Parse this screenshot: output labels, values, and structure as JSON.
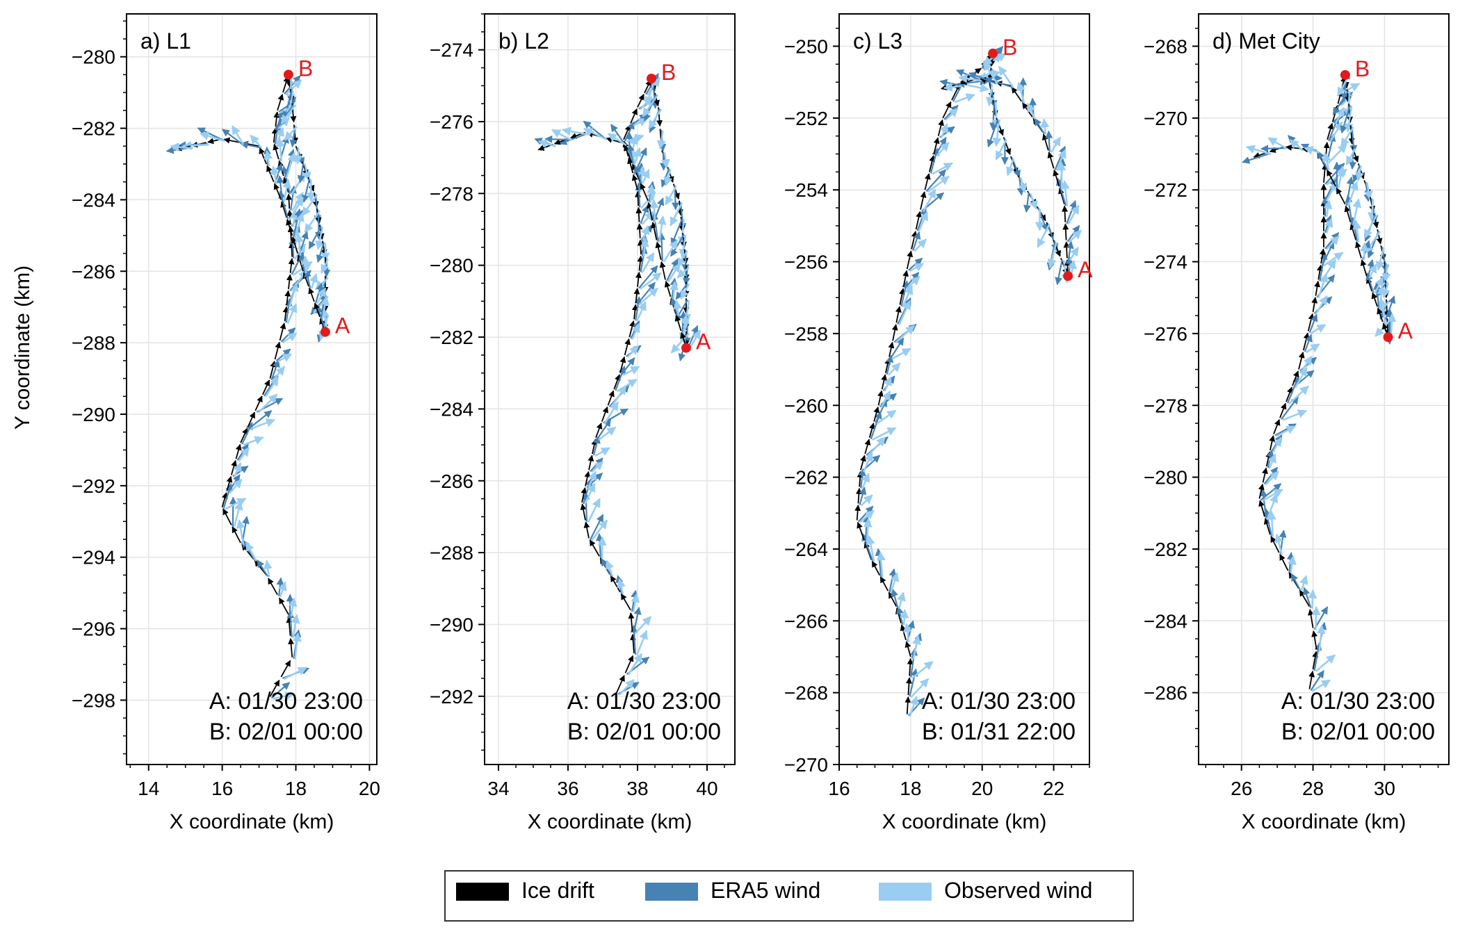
{
  "figure": {
    "ylabel": "Y coordinate (km)",
    "legend": {
      "placement": "bottom-center",
      "entries": [
        {
          "label": "Ice drift",
          "color": "#000000"
        },
        {
          "label": "ERA5 wind",
          "color": "#4682b4"
        },
        {
          "label": "Observed wind",
          "color": "#99cdf2"
        }
      ]
    },
    "marker_color": "#e31a1c"
  },
  "chart_data": [
    {
      "type": "quiver",
      "title": "a) L1",
      "xlabel": "X coordinate (km)",
      "xlim": [
        13.4,
        20.2
      ],
      "ylim": [
        -299.8,
        -278.8
      ],
      "xticks": [
        14,
        16,
        18,
        20
      ],
      "yticks": [
        -298,
        -296,
        -294,
        -292,
        -290,
        -288,
        -286,
        -284,
        -282,
        -280
      ],
      "grid": true,
      "track": [
        [
          17.3,
          -297.9
        ],
        [
          17.9,
          -296.8
        ],
        [
          17.8,
          -295.6
        ],
        [
          17.2,
          -294.5
        ],
        [
          16.5,
          -293.6
        ],
        [
          16.0,
          -292.6
        ],
        [
          16.5,
          -290.8
        ],
        [
          17.3,
          -289.0
        ],
        [
          17.7,
          -287.4
        ],
        [
          17.9,
          -285.6
        ],
        [
          17.8,
          -283.8
        ],
        [
          17.4,
          -282.4
        ],
        [
          17.5,
          -281.5
        ],
        [
          17.8,
          -280.5
        ],
        [
          17.9,
          -281.3
        ],
        [
          18.0,
          -282.5
        ],
        [
          18.5,
          -283.8
        ],
        [
          18.8,
          -285.6
        ],
        [
          18.8,
          -287.7
        ],
        [
          18.2,
          -286.0
        ],
        [
          17.6,
          -284.0
        ],
        [
          17.0,
          -282.5
        ],
        [
          16.0,
          -282.3
        ],
        [
          14.7,
          -282.6
        ]
      ],
      "point_a": {
        "label": "A",
        "x": 18.8,
        "y": -287.7
      },
      "point_b": {
        "label": "B",
        "x": 17.8,
        "y": -280.5
      },
      "annotation": {
        "a": "A: 01/30 23:00",
        "b": "B: 02/01 00:00"
      }
    },
    {
      "type": "quiver",
      "title": "b) L2",
      "xlabel": "X coordinate (km)",
      "xlim": [
        33.6,
        40.8
      ],
      "ylim": [
        -293.9,
        -273.0
      ],
      "xticks": [
        34,
        36,
        38,
        40
      ],
      "yticks": [
        -292,
        -290,
        -288,
        -286,
        -284,
        -282,
        -280,
        -278,
        -276,
        -274
      ],
      "grid": true,
      "track": [
        [
          37.4,
          -291.9
        ],
        [
          37.9,
          -290.8
        ],
        [
          37.8,
          -289.6
        ],
        [
          37.2,
          -288.6
        ],
        [
          36.6,
          -287.6
        ],
        [
          36.4,
          -286.6
        ],
        [
          36.8,
          -284.8
        ],
        [
          37.5,
          -283.0
        ],
        [
          37.9,
          -281.5
        ],
        [
          38.1,
          -279.7
        ],
        [
          38.0,
          -277.9
        ],
        [
          37.6,
          -276.5
        ],
        [
          38.0,
          -275.6
        ],
        [
          38.4,
          -274.8
        ],
        [
          38.6,
          -275.6
        ],
        [
          38.7,
          -276.8
        ],
        [
          39.2,
          -278.2
        ],
        [
          39.4,
          -280.0
        ],
        [
          39.4,
          -282.3
        ],
        [
          38.8,
          -280.4
        ],
        [
          38.3,
          -278.2
        ],
        [
          37.6,
          -276.6
        ],
        [
          36.5,
          -276.3
        ],
        [
          35.1,
          -276.8
        ]
      ],
      "point_a": {
        "label": "A",
        "x": 39.4,
        "y": -282.3
      },
      "point_b": {
        "label": "B",
        "x": 38.4,
        "y": -274.8
      },
      "annotation": {
        "a": "A: 01/30 23:00",
        "b": "B: 02/01 00:00"
      }
    },
    {
      "type": "quiver",
      "title": "c) L3",
      "xlabel": "X coordinate (km)",
      "xlim": [
        16.0,
        23.0
      ],
      "ylim": [
        -270.0,
        -249.1
      ],
      "xticks": [
        16,
        18,
        20,
        22
      ],
      "yticks": [
        -270,
        -268,
        -266,
        -264,
        -262,
        -260,
        -258,
        -256,
        -254,
        -252,
        -250
      ],
      "grid": true,
      "track": [
        [
          17.9,
          -268.6
        ],
        [
          18.0,
          -267.0
        ],
        [
          17.6,
          -265.6
        ],
        [
          16.9,
          -264.3
        ],
        [
          16.5,
          -263.2
        ],
        [
          16.6,
          -261.8
        ],
        [
          17.1,
          -260.0
        ],
        [
          17.5,
          -258.2
        ],
        [
          17.9,
          -256.2
        ],
        [
          18.4,
          -254.0
        ],
        [
          18.9,
          -252.0
        ],
        [
          19.4,
          -251.0
        ],
        [
          20.0,
          -250.6
        ],
        [
          20.3,
          -250.2
        ],
        [
          20.2,
          -251.0
        ],
        [
          20.4,
          -252.0
        ],
        [
          21.0,
          -253.6
        ],
        [
          21.8,
          -254.9
        ],
        [
          22.4,
          -256.4
        ],
        [
          22.3,
          -254.4
        ],
        [
          21.7,
          -252.4
        ],
        [
          20.8,
          -251.1
        ],
        [
          19.9,
          -250.9
        ],
        [
          18.8,
          -251.2
        ]
      ],
      "point_a": {
        "label": "A",
        "x": 22.4,
        "y": -256.4
      },
      "point_b": {
        "label": "B",
        "x": 20.3,
        "y": -250.2
      },
      "annotation": {
        "a": "A: 01/30 23:00",
        "b": "B: 01/31 22:00"
      }
    },
    {
      "type": "quiver",
      "title": "d) Met City",
      "xlabel": "X coordinate (km)",
      "xlim": [
        24.8,
        31.8
      ],
      "ylim": [
        -288.0,
        -267.1
      ],
      "xticks": [
        26,
        28,
        30
      ],
      "yticks": [
        -286,
        -284,
        -282,
        -280,
        -278,
        -276,
        -274,
        -272,
        -270,
        -268
      ],
      "grid": true,
      "track": [
        [
          27.9,
          -285.9
        ],
        [
          28.1,
          -284.8
        ],
        [
          27.9,
          -283.6
        ],
        [
          27.3,
          -282.6
        ],
        [
          26.8,
          -281.6
        ],
        [
          26.5,
          -280.6
        ],
        [
          26.9,
          -278.8
        ],
        [
          27.6,
          -277.0
        ],
        [
          28.0,
          -275.4
        ],
        [
          28.3,
          -273.6
        ],
        [
          28.3,
          -271.8
        ],
        [
          28.4,
          -270.6
        ],
        [
          28.7,
          -269.6
        ],
        [
          28.9,
          -268.8
        ],
        [
          29.0,
          -269.6
        ],
        [
          29.1,
          -270.8
        ],
        [
          29.6,
          -272.2
        ],
        [
          30.0,
          -274.0
        ],
        [
          30.1,
          -276.1
        ],
        [
          29.5,
          -274.4
        ],
        [
          28.9,
          -272.4
        ],
        [
          28.1,
          -270.9
        ],
        [
          27.2,
          -270.8
        ],
        [
          26.3,
          -271.1
        ]
      ],
      "point_a": {
        "label": "A",
        "x": 30.1,
        "y": -276.1
      },
      "point_b": {
        "label": "B",
        "x": 28.9,
        "y": -268.8
      },
      "annotation": {
        "a": "A: 01/30 23:00",
        "b": "B: 02/01 00:00"
      }
    }
  ]
}
